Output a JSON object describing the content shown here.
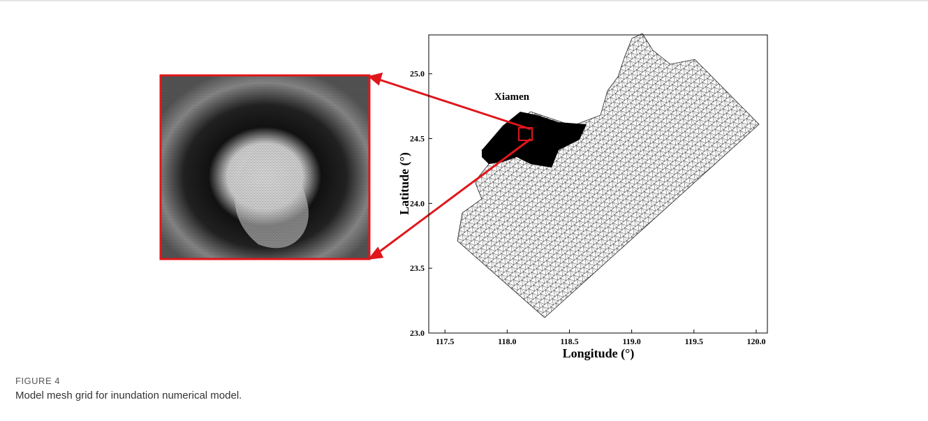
{
  "figure": {
    "label": "FIGURE 4",
    "caption": "Model mesh grid for inundation numerical model."
  },
  "chart_data": {
    "type": "map",
    "xlabel": "Longitude (°)",
    "ylabel": "Latitude (°)",
    "annotation": "Xiamen",
    "xlim": [
      117.37,
      120.09
    ],
    "ylim": [
      23.0,
      25.3
    ],
    "xticks": [
      117.5,
      {
        "value": 118,
        "label": "118.0"
      },
      118.5,
      {
        "value": 119,
        "label": "119.0"
      },
      119.5,
      {
        "value": 120,
        "label": "120.0"
      }
    ],
    "yticks": [
      {
        "value": 23,
        "label": "23.0"
      },
      23.5,
      {
        "value": 24,
        "label": "24.0"
      },
      24.5,
      {
        "value": 25,
        "label": "25.0"
      }
    ]
  }
}
